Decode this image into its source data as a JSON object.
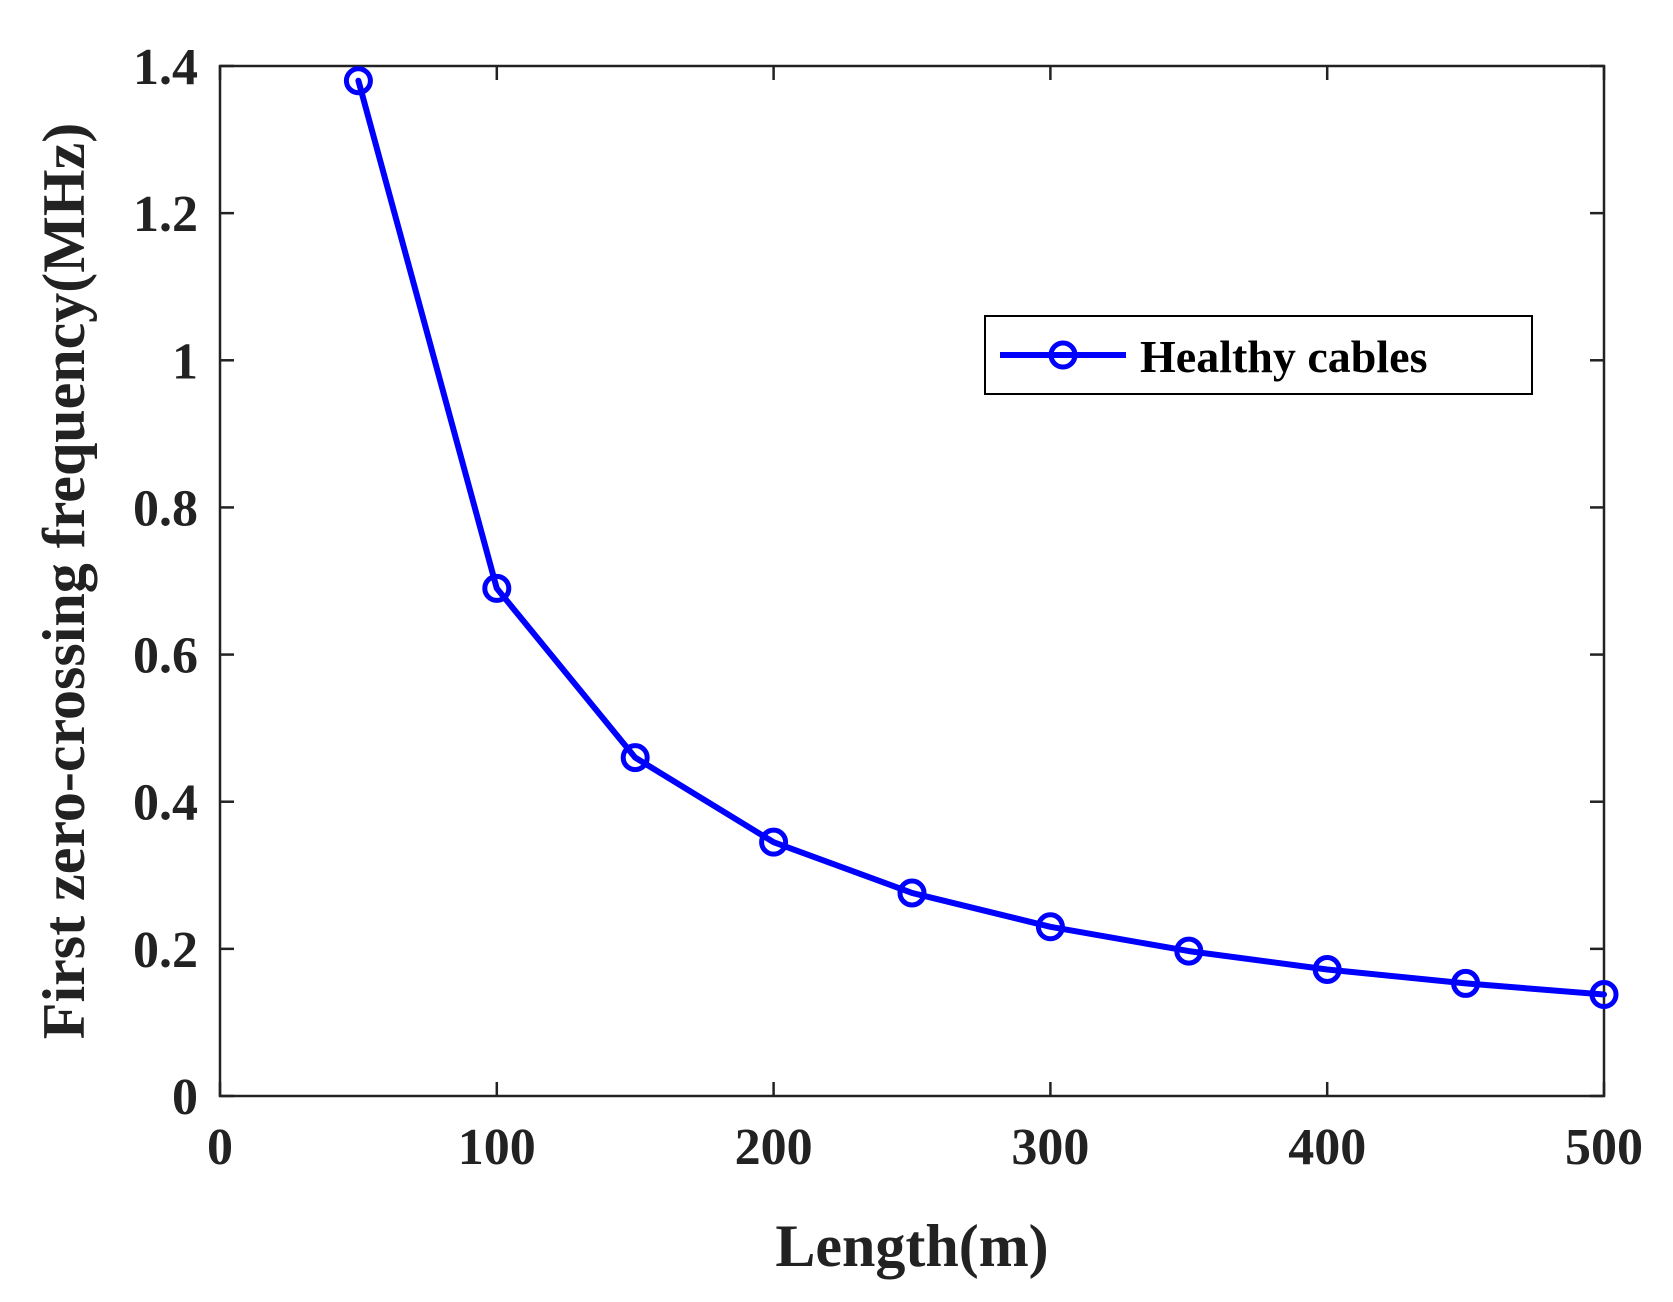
{
  "chart_data": {
    "type": "line",
    "title": "",
    "xlabel": "Length(m)",
    "ylabel": "First zero-crossing frequency(MHz)",
    "xlim": [
      0,
      500
    ],
    "ylim": [
      0,
      1.4
    ],
    "xticks": [
      0,
      100,
      200,
      300,
      400,
      500
    ],
    "xtick_labels": [
      "0",
      "100",
      "200",
      "300",
      "400",
      "500"
    ],
    "yticks": [
      0,
      0.2,
      0.4,
      0.6,
      0.8,
      1.0,
      1.2,
      1.4
    ],
    "ytick_labels": [
      "0",
      "0.2",
      "0.4",
      "0.6",
      "0.8",
      "1",
      "1.2",
      "1.4"
    ],
    "grid": false,
    "legend_position": "upper-right",
    "series": [
      {
        "name": "Healthy cables",
        "color": "#0000ff",
        "marker": "circle",
        "x": [
          50,
          100,
          150,
          200,
          250,
          300,
          350,
          400,
          450,
          500
        ],
        "values": [
          1.38,
          0.69,
          0.46,
          0.345,
          0.276,
          0.23,
          0.197,
          0.172,
          0.153,
          0.138
        ]
      }
    ]
  }
}
